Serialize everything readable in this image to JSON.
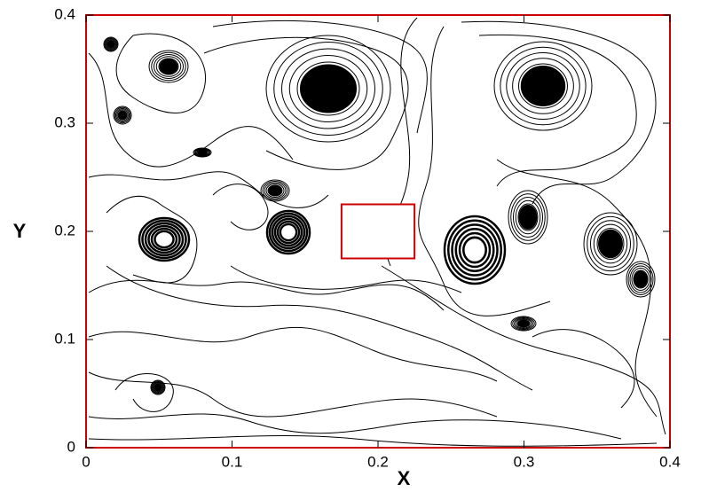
{
  "chart_data": {
    "type": "streamline",
    "x_label": "X",
    "y_label": "Y",
    "xlim": [
      0,
      0.4
    ],
    "ylim": [
      0,
      0.4
    ],
    "xticks": [
      0,
      0.1,
      0.2,
      0.3,
      0.4
    ],
    "yticks": [
      0,
      0.1,
      0.2,
      0.3,
      0.4
    ],
    "border_color": "#cc0000",
    "line_color": "#000000",
    "obstacle": {
      "x": [
        0.175,
        0.225
      ],
      "y": [
        0.175,
        0.225
      ]
    }
  }
}
